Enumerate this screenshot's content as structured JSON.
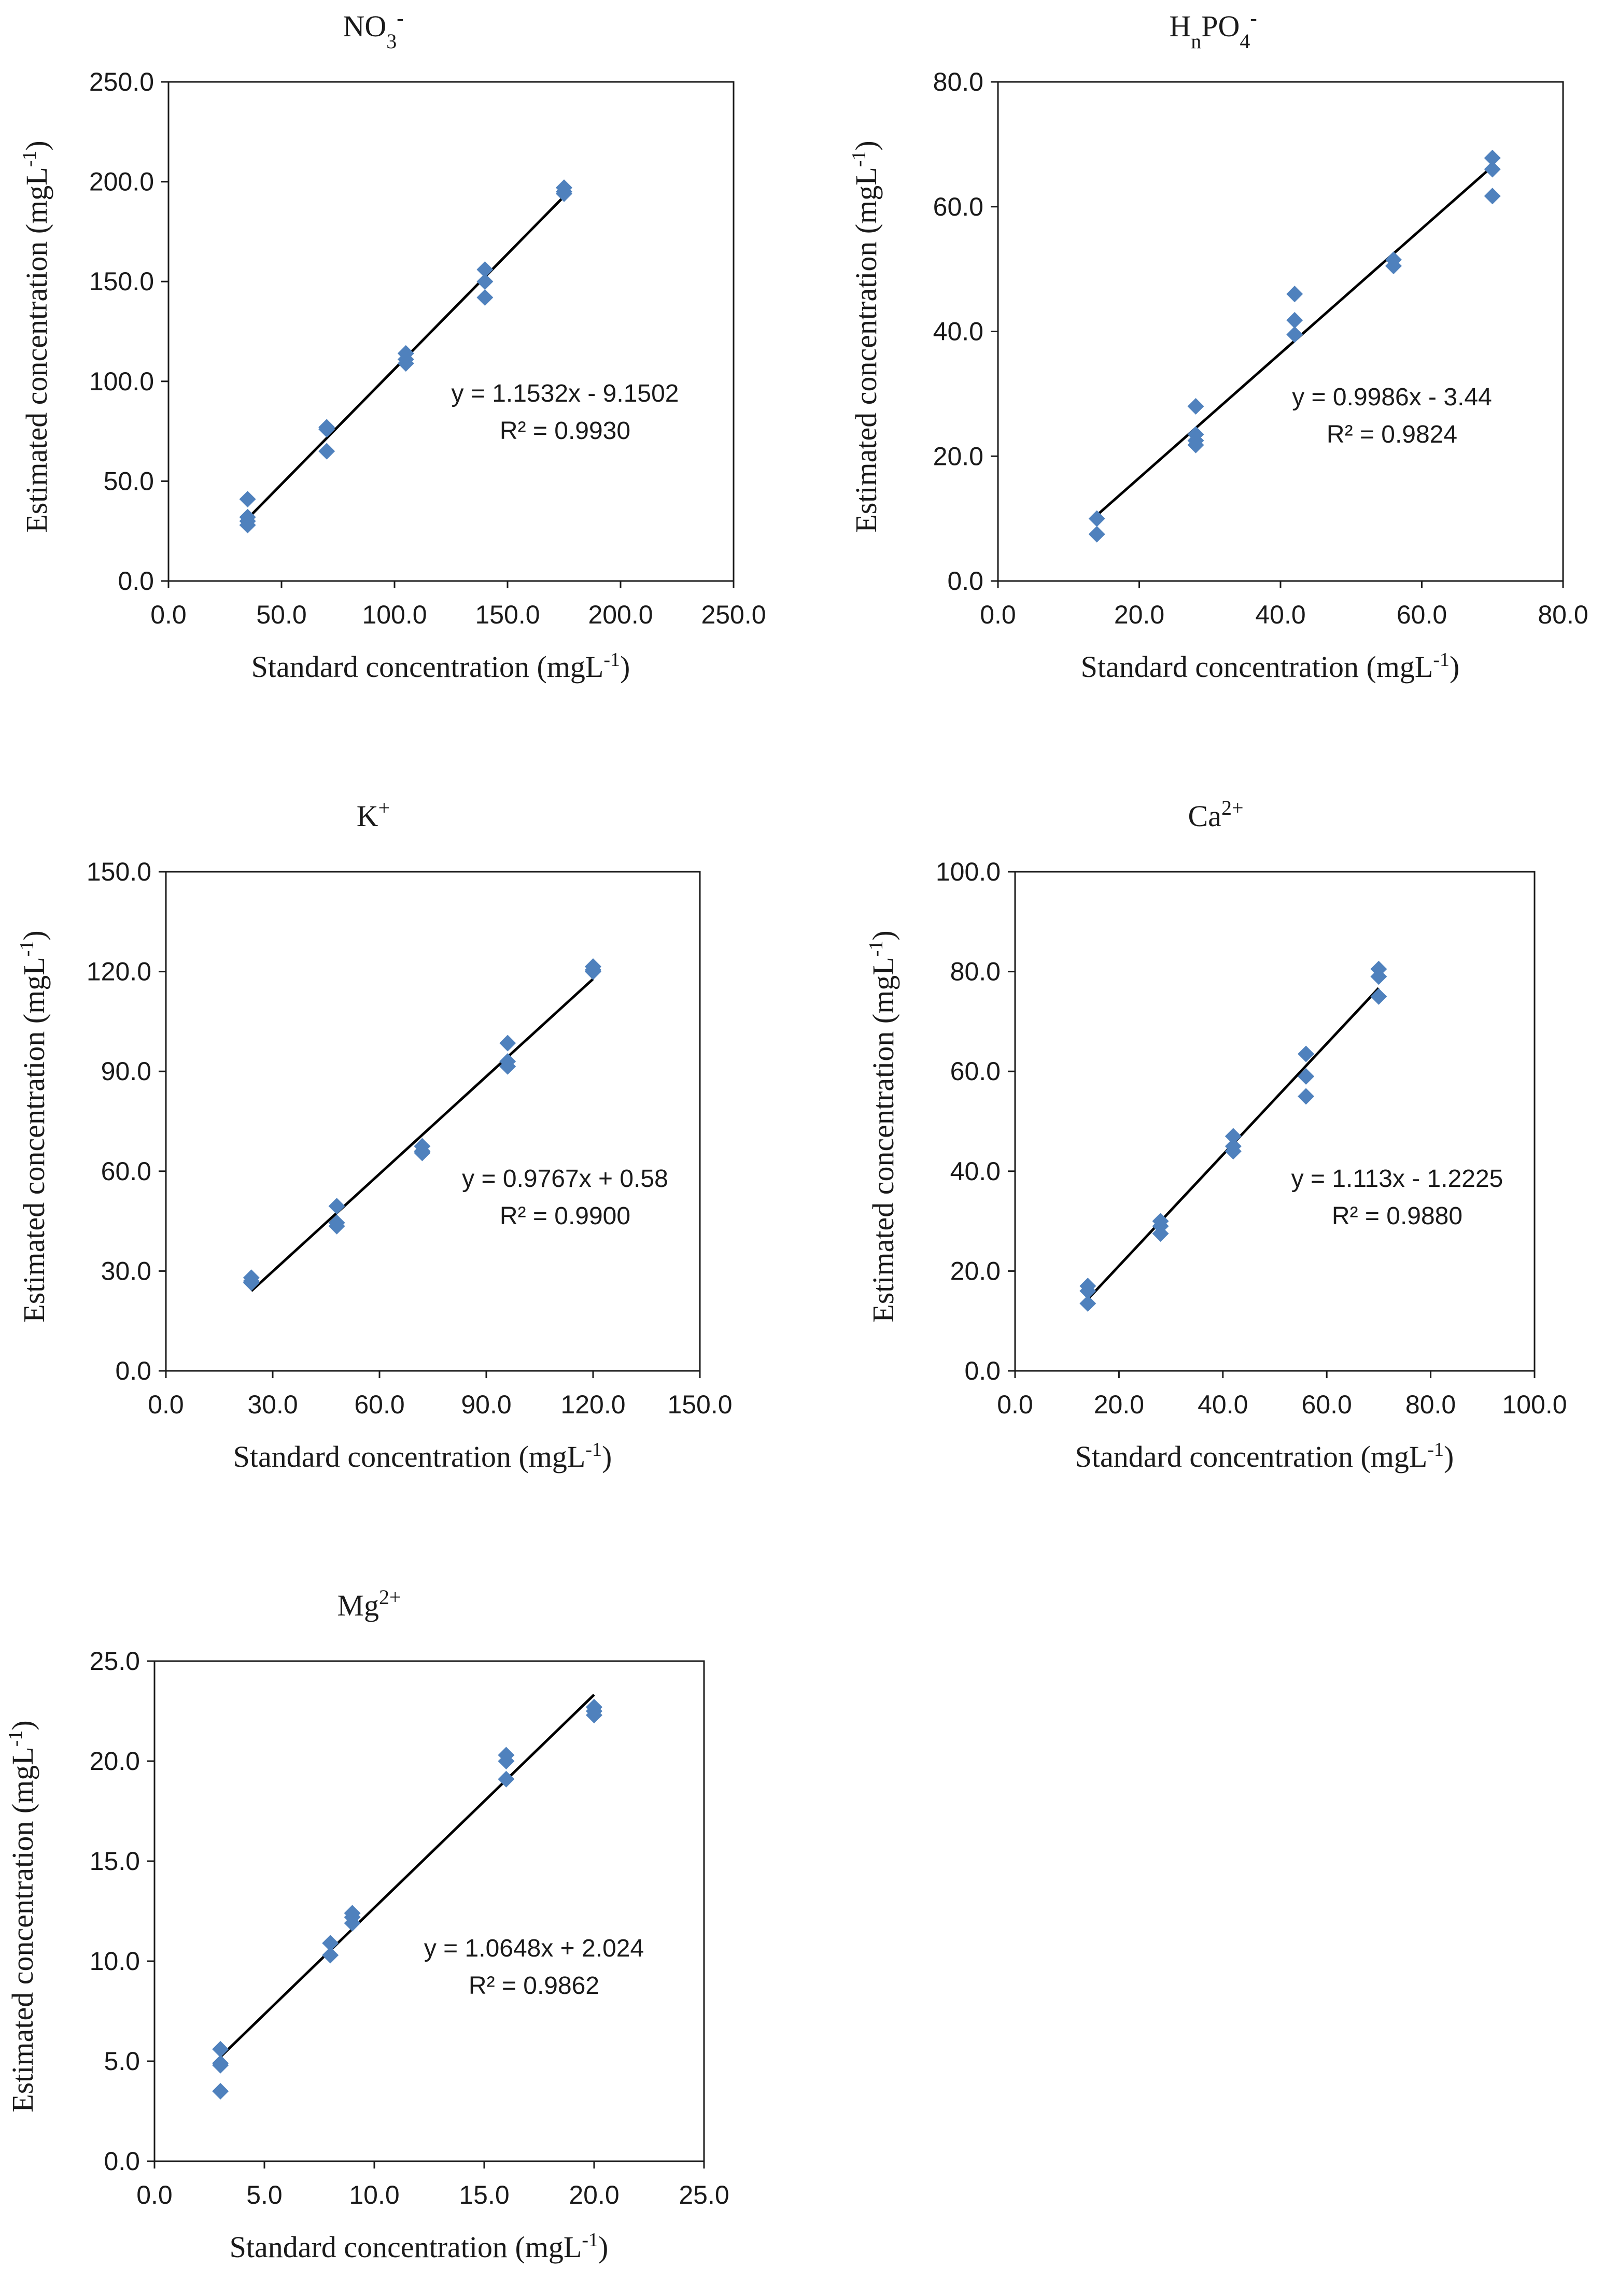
{
  "colors": {
    "marker": "#4f81bd",
    "line": "#000000",
    "axis": "#1a1a1a"
  },
  "chart_data": [
    {
      "type": "scatter",
      "title": "NO3-",
      "title_base": "NO",
      "title_sub": "3",
      "title_sup": "-",
      "xlabel": "Standard concentration (mgL-1)",
      "ylabel": "Estimated concentration (mgL-1)",
      "xlim": [
        0,
        250
      ],
      "ylim": [
        0,
        250
      ],
      "xticks": [
        "0.0",
        "50.0",
        "100.0",
        "150.0",
        "200.0",
        "250.0"
      ],
      "yticks": [
        "0.0",
        "50.0",
        "100.0",
        "150.0",
        "200.0",
        "250.0"
      ],
      "x": [
        35,
        35,
        35,
        35,
        70,
        70,
        70,
        105,
        105,
        105,
        140,
        140,
        140,
        175,
        175,
        175
      ],
      "y": [
        41,
        32,
        28,
        30,
        77,
        76,
        65,
        114,
        111,
        109,
        156,
        150,
        142,
        197,
        195,
        194
      ],
      "fit": {
        "slope": 1.1532,
        "intercept": -9.1502,
        "x_range": [
          35,
          175
        ]
      },
      "equation": "y = 1.1532x - 9.1502",
      "r2": "R² = 0.9930",
      "grid": false
    },
    {
      "type": "scatter",
      "title": "HnPO4-",
      "title_base": "H",
      "title_sub": "n",
      "title_mid": "PO",
      "title_sub2": "4",
      "title_sup": "-",
      "xlabel": "Standard concentration (mgL-1)",
      "ylabel": "Estimated concentration (mgL-1)",
      "xlim": [
        0,
        80
      ],
      "ylim": [
        0,
        80
      ],
      "xticks": [
        "0.0",
        "20.0",
        "40.0",
        "60.0",
        "80.0"
      ],
      "yticks": [
        "0.0",
        "20.0",
        "40.0",
        "60.0",
        "80.0"
      ],
      "x": [
        14,
        14,
        28,
        28,
        28,
        28,
        42,
        42,
        42,
        56,
        56,
        70,
        70,
        70
      ],
      "y": [
        10,
        7.5,
        28,
        23.5,
        22.5,
        21.8,
        46,
        41.8,
        39.5,
        51.5,
        50.5,
        67.8,
        66,
        61.7
      ],
      "fit": {
        "slope": 0.9986,
        "intercept": -3.44,
        "x_range": [
          14,
          70
        ]
      },
      "equation": "y = 0.9986x - 3.44",
      "r2": "R² = 0.9824",
      "grid": false
    },
    {
      "type": "scatter",
      "title": "K+",
      "title_base": "K",
      "title_sup": "+",
      "xlabel": "Standard concentration (mgL-1)",
      "ylabel": "Estimated concentration (mgL-1)",
      "xlim": [
        0,
        150
      ],
      "ylim": [
        0,
        150
      ],
      "xticks": [
        "0.0",
        "30.0",
        "60.0",
        "90.0",
        "120.0",
        "150.0"
      ],
      "yticks": [
        "0.0",
        "30.0",
        "60.0",
        "90.0",
        "120.0",
        "150.0"
      ],
      "x": [
        24,
        24,
        24,
        48,
        48,
        48,
        72,
        72,
        72,
        96,
        96,
        96,
        120,
        120,
        120
      ],
      "y": [
        28,
        27,
        26.5,
        49.5,
        44.5,
        43.5,
        67.5,
        66,
        65.5,
        98.5,
        93,
        91.5,
        121.5,
        120.5,
        120
      ],
      "fit": {
        "slope": 0.9767,
        "intercept": 0.58,
        "x_range": [
          24,
          120
        ]
      },
      "equation": "y = 0.9767x + 0.58",
      "r2": "R² = 0.9900",
      "grid": false
    },
    {
      "type": "scatter",
      "title": "Ca2+",
      "title_base": "Ca",
      "title_sup": "2+",
      "xlabel": "Standard concentration (mgL-1)",
      "ylabel": "Estimated concentration (mgL-1)",
      "xlim": [
        0,
        100
      ],
      "ylim": [
        0,
        100
      ],
      "xticks": [
        "0.0",
        "20.0",
        "40.0",
        "60.0",
        "80.0",
        "100.0"
      ],
      "yticks": [
        "0.0",
        "20.0",
        "40.0",
        "60.0",
        "80.0",
        "100.0"
      ],
      "x": [
        14,
        14,
        14,
        28,
        28,
        28,
        42,
        42,
        42,
        56,
        56,
        56,
        70,
        70,
        70
      ],
      "y": [
        17,
        16,
        13.5,
        30,
        29,
        27.5,
        47,
        45,
        44,
        63.5,
        59,
        55,
        80.5,
        79,
        75
      ],
      "fit": {
        "slope": 1.113,
        "intercept": -1.2225,
        "x_range": [
          14,
          70
        ]
      },
      "equation": "y = 1.113x - 1.2225",
      "r2": "R² = 0.9880",
      "grid": false
    },
    {
      "type": "scatter",
      "title": "Mg2+",
      "title_base": "Mg",
      "title_sup": "2+",
      "xlabel": "Standard concentration (mgL-1)",
      "ylabel": "Estimated concentration (mgL-1)",
      "xlim": [
        0,
        25
      ],
      "ylim": [
        0,
        25
      ],
      "xticks": [
        "0.0",
        "5.0",
        "10.0",
        "15.0",
        "20.0",
        "25.0"
      ],
      "yticks": [
        "0.0",
        "5.0",
        "10.0",
        "15.0",
        "20.0",
        "25.0"
      ],
      "x": [
        3,
        3,
        3,
        3,
        8,
        8,
        9,
        9,
        9,
        16,
        16,
        16,
        20,
        20,
        20
      ],
      "y": [
        5.6,
        4.9,
        4.8,
        3.5,
        10.9,
        10.3,
        12.4,
        12.2,
        11.9,
        20.3,
        20.0,
        19.1,
        22.7,
        22.5,
        22.3
      ],
      "fit": {
        "slope": 1.0648,
        "intercept": 2.024,
        "x_range": [
          3,
          20
        ]
      },
      "equation": "y = 1.0648x + 2.024",
      "r2": "R² = 0.9862",
      "grid": false
    }
  ]
}
